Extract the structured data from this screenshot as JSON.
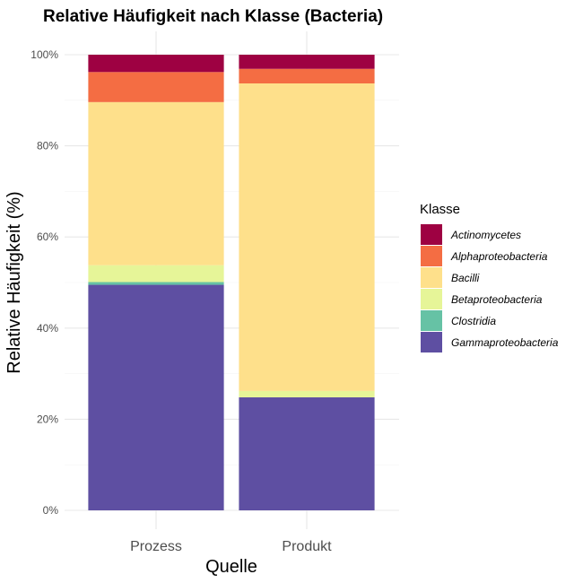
{
  "chart_data": {
    "type": "bar",
    "stacked": true,
    "title": "Relative Häufigkeit nach Klasse (Bacteria)",
    "xlabel": "Quelle",
    "ylabel": "Relative Häufigkeit (%)",
    "categories": [
      "Prozess",
      "Produkt"
    ],
    "ylim": [
      0,
      100
    ],
    "yticks": [
      0,
      20,
      40,
      60,
      80,
      100
    ],
    "ytick_labels": [
      "0%",
      "20%",
      "40%",
      "60%",
      "80%",
      "100%"
    ],
    "grid": true,
    "legend": {
      "title": "Klasse",
      "position": "right"
    },
    "series": [
      {
        "name": "Gammaproteobacteria",
        "color": "#5e4fa2",
        "values": [
          49.5,
          24.8
        ]
      },
      {
        "name": "Clostridia",
        "color": "#66c2a5",
        "values": [
          0.6,
          0.0
        ]
      },
      {
        "name": "Betaproteobacteria",
        "color": "#e6f598",
        "values": [
          3.7,
          1.4
        ]
      },
      {
        "name": "Bacilli",
        "color": "#fee08b",
        "values": [
          35.8,
          67.5
        ]
      },
      {
        "name": "Alphaproteobacteria",
        "color": "#f46d43",
        "values": [
          6.6,
          3.2
        ]
      },
      {
        "name": "Actinomycetes",
        "color": "#9e0142",
        "values": [
          3.8,
          3.1
        ]
      }
    ],
    "legend_order": [
      "Actinomycetes",
      "Alphaproteobacteria",
      "Bacilli",
      "Betaproteobacteria",
      "Clostridia",
      "Gammaproteobacteria"
    ]
  }
}
